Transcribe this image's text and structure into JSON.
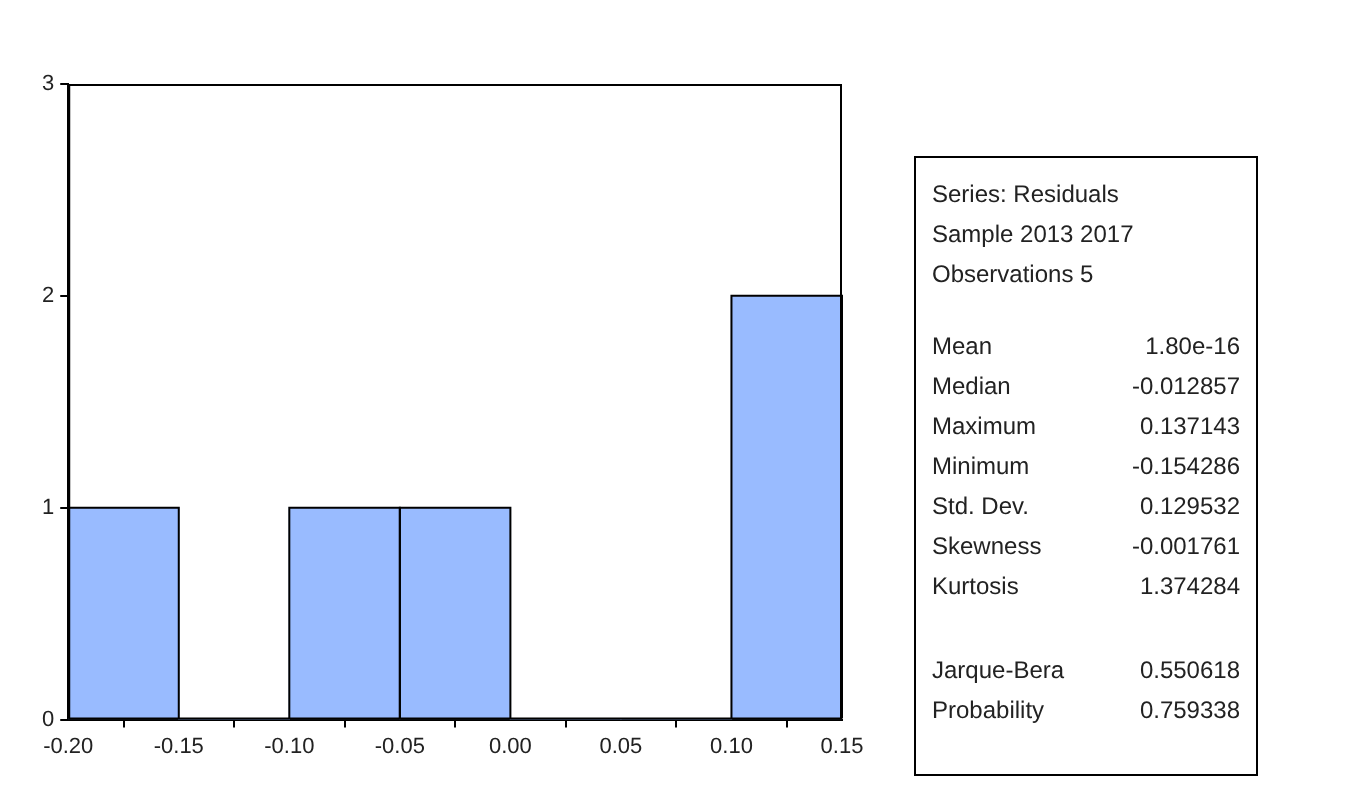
{
  "chart_data": {
    "type": "histogram",
    "bins": [
      -0.2,
      -0.15,
      -0.1,
      -0.05,
      0.0,
      0.05,
      0.1,
      0.15
    ],
    "values": [
      1,
      0,
      1,
      1,
      0,
      0,
      2
    ],
    "color": "#99bbff",
    "xlim": [
      -0.2,
      0.15
    ],
    "xticks": [
      {
        "value": -0.2,
        "label": "-0.20"
      },
      {
        "value": -0.15,
        "label": "-0.15"
      },
      {
        "value": -0.1,
        "label": "-0.10"
      },
      {
        "value": -0.05,
        "label": "-0.05"
      },
      {
        "value": 0.0,
        "label": "0.00"
      },
      {
        "value": 0.05,
        "label": "0.05"
      },
      {
        "value": 0.1,
        "label": "0.10"
      },
      {
        "value": 0.15,
        "label": "0.15"
      }
    ],
    "ylim": [
      0,
      3
    ],
    "yticks": [
      0,
      1,
      2,
      3
    ],
    "grid": false,
    "annotations": [
      "Series: Residuals",
      "Sample 2013 2017",
      "Observations 5",
      "Mean",
      "1.80e-16",
      "Median",
      "-0.012857",
      "Maximum",
      "0.137143",
      "Minimum",
      "-0.154286",
      "Std. Dev.",
      "0.129532",
      "Skewness",
      "-0.001761",
      "Kurtosis",
      "1.374284",
      "Jarque-Bera",
      "0.550618",
      "Probability",
      "0.759338"
    ]
  }
}
